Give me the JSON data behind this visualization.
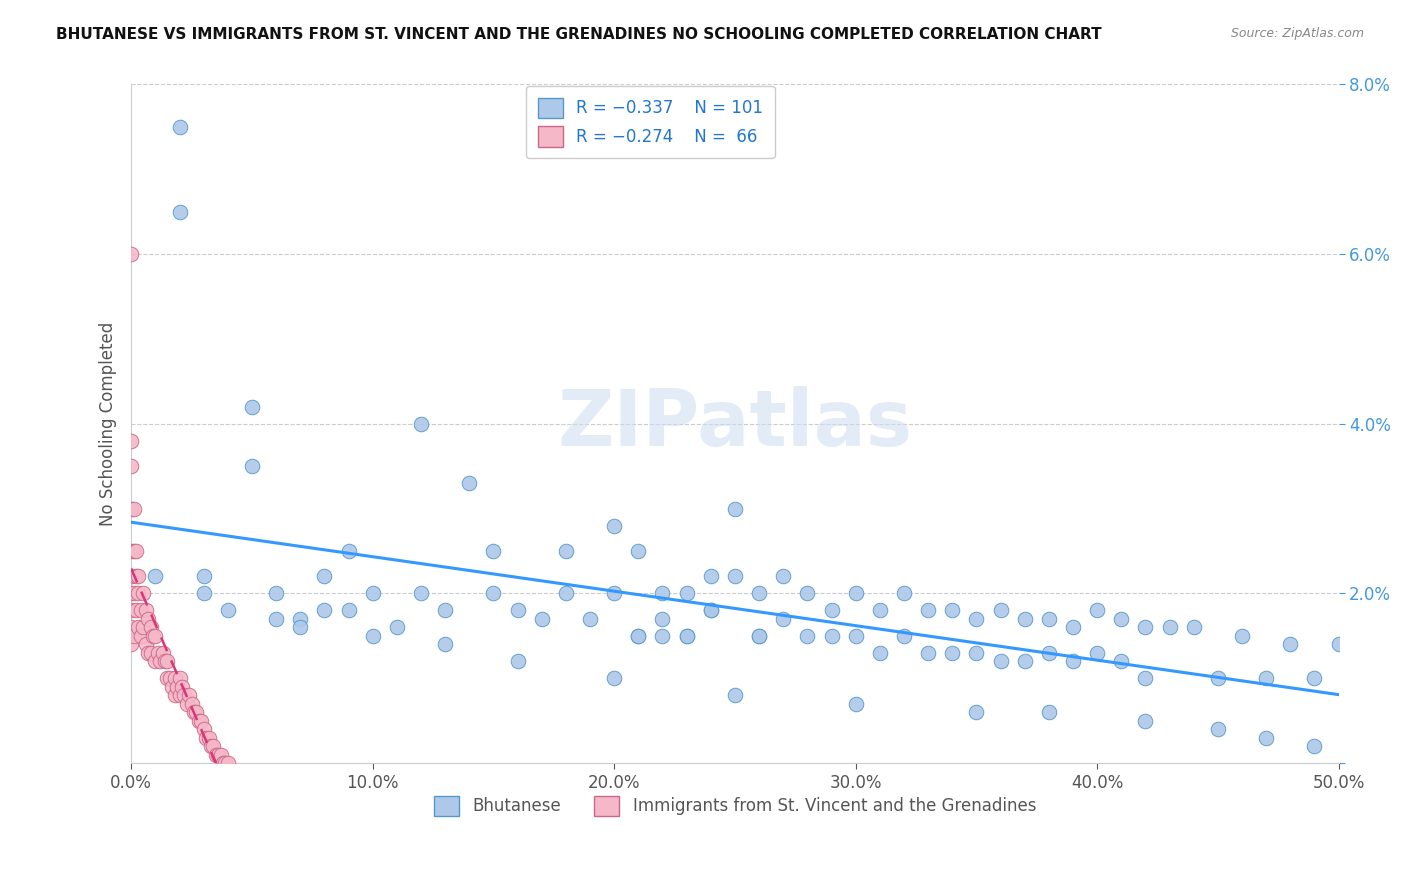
{
  "title": "BHUTANESE VS IMMIGRANTS FROM ST. VINCENT AND THE GRENADINES NO SCHOOLING COMPLETED CORRELATION CHART",
  "source": "Source: ZipAtlas.com",
  "ylabel": "No Schooling Completed",
  "xlim": [
    0,
    0.5
  ],
  "ylim": [
    0,
    0.08
  ],
  "xticks": [
    0.0,
    0.1,
    0.2,
    0.3,
    0.4,
    0.5
  ],
  "xticklabels": [
    "0.0%",
    "10.0%",
    "20.0%",
    "30.0%",
    "40.0%",
    "50.0%"
  ],
  "yticks": [
    0.0,
    0.02,
    0.04,
    0.06,
    0.08
  ],
  "yticklabels": [
    "",
    "2.0%",
    "4.0%",
    "6.0%",
    "8.0%"
  ],
  "blue_fill": "#adc8e8",
  "blue_edge": "#5599cc",
  "pink_fill": "#f4b8c8",
  "pink_edge": "#cc6688",
  "blue_line_color": "#3399ff",
  "pink_line_color": "#dd3377",
  "legend_R1": "R = −0.337",
  "legend_N1": "N = 101",
  "legend_R2": "R = −0.274",
  "legend_N2": "N =  66",
  "watermark": "ZIPatlas",
  "blue_scatter_x": [
    0.02,
    0.02,
    0.05,
    0.05,
    0.06,
    0.07,
    0.08,
    0.09,
    0.1,
    0.11,
    0.12,
    0.12,
    0.13,
    0.14,
    0.15,
    0.15,
    0.16,
    0.17,
    0.18,
    0.18,
    0.19,
    0.2,
    0.2,
    0.21,
    0.21,
    0.22,
    0.22,
    0.23,
    0.23,
    0.24,
    0.24,
    0.25,
    0.25,
    0.26,
    0.26,
    0.27,
    0.27,
    0.28,
    0.28,
    0.29,
    0.29,
    0.3,
    0.3,
    0.31,
    0.31,
    0.32,
    0.32,
    0.33,
    0.33,
    0.34,
    0.34,
    0.35,
    0.35,
    0.36,
    0.36,
    0.37,
    0.37,
    0.38,
    0.38,
    0.39,
    0.39,
    0.4,
    0.4,
    0.41,
    0.41,
    0.42,
    0.42,
    0.43,
    0.44,
    0.45,
    0.46,
    0.47,
    0.48,
    0.49,
    0.5,
    0.03,
    0.03,
    0.04,
    0.06,
    0.07,
    0.1,
    0.13,
    0.16,
    0.2,
    0.25,
    0.3,
    0.35,
    0.38,
    0.42,
    0.45,
    0.47,
    0.49,
    0.0,
    0.01,
    0.08,
    0.09,
    0.21,
    0.22,
    0.23,
    0.24,
    0.26
  ],
  "blue_scatter_y": [
    0.075,
    0.065,
    0.042,
    0.035,
    0.02,
    0.017,
    0.022,
    0.025,
    0.02,
    0.016,
    0.04,
    0.02,
    0.018,
    0.033,
    0.025,
    0.02,
    0.018,
    0.017,
    0.025,
    0.02,
    0.017,
    0.028,
    0.02,
    0.025,
    0.015,
    0.02,
    0.015,
    0.02,
    0.015,
    0.022,
    0.018,
    0.03,
    0.022,
    0.02,
    0.015,
    0.022,
    0.017,
    0.02,
    0.015,
    0.018,
    0.015,
    0.02,
    0.015,
    0.018,
    0.013,
    0.02,
    0.015,
    0.018,
    0.013,
    0.018,
    0.013,
    0.017,
    0.013,
    0.018,
    0.012,
    0.017,
    0.012,
    0.017,
    0.013,
    0.016,
    0.012,
    0.018,
    0.013,
    0.017,
    0.012,
    0.016,
    0.01,
    0.016,
    0.016,
    0.01,
    0.015,
    0.01,
    0.014,
    0.01,
    0.014,
    0.022,
    0.02,
    0.018,
    0.017,
    0.016,
    0.015,
    0.014,
    0.012,
    0.01,
    0.008,
    0.007,
    0.006,
    0.006,
    0.005,
    0.004,
    0.003,
    0.002,
    0.022,
    0.022,
    0.018,
    0.018,
    0.015,
    0.017,
    0.015,
    0.018,
    0.015
  ],
  "pink_scatter_x": [
    0.0,
    0.0,
    0.0,
    0.0,
    0.0,
    0.0,
    0.0,
    0.0,
    0.0,
    0.0,
    0.001,
    0.001,
    0.001,
    0.001,
    0.002,
    0.002,
    0.002,
    0.003,
    0.003,
    0.003,
    0.004,
    0.004,
    0.005,
    0.005,
    0.006,
    0.006,
    0.007,
    0.007,
    0.008,
    0.008,
    0.009,
    0.01,
    0.01,
    0.011,
    0.012,
    0.013,
    0.014,
    0.015,
    0.015,
    0.016,
    0.017,
    0.018,
    0.018,
    0.019,
    0.02,
    0.02,
    0.021,
    0.022,
    0.023,
    0.024,
    0.025,
    0.026,
    0.027,
    0.028,
    0.029,
    0.03,
    0.031,
    0.032,
    0.033,
    0.034,
    0.035,
    0.036,
    0.037,
    0.038,
    0.039,
    0.04
  ],
  "pink_scatter_y": [
    0.06,
    0.038,
    0.035,
    0.03,
    0.025,
    0.022,
    0.02,
    0.018,
    0.016,
    0.014,
    0.03,
    0.025,
    0.02,
    0.015,
    0.025,
    0.022,
    0.018,
    0.022,
    0.02,
    0.016,
    0.018,
    0.015,
    0.02,
    0.016,
    0.018,
    0.014,
    0.017,
    0.013,
    0.016,
    0.013,
    0.015,
    0.015,
    0.012,
    0.013,
    0.012,
    0.013,
    0.012,
    0.012,
    0.01,
    0.01,
    0.009,
    0.01,
    0.008,
    0.009,
    0.01,
    0.008,
    0.009,
    0.008,
    0.007,
    0.008,
    0.007,
    0.006,
    0.006,
    0.005,
    0.005,
    0.004,
    0.003,
    0.003,
    0.002,
    0.002,
    0.001,
    0.001,
    0.001,
    0.0,
    0.0,
    0.0
  ]
}
